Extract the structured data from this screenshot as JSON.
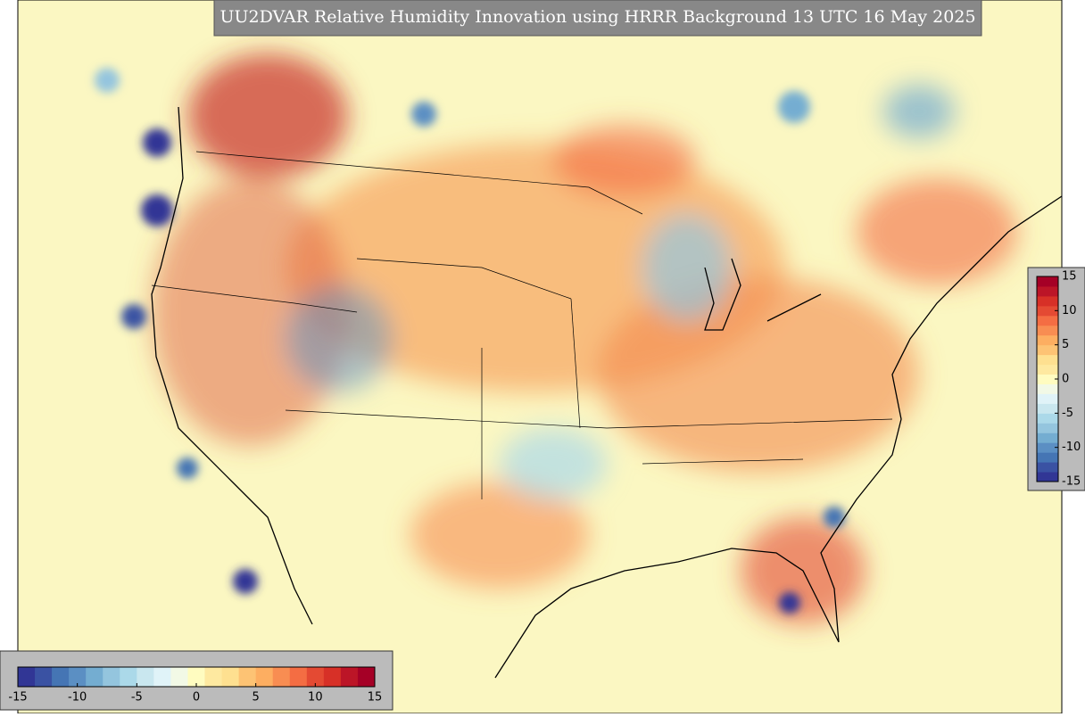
{
  "title": "UU2DVAR Relative Humidity Innovation using HRRR Background 13 UTC 16 May 2025",
  "colorbars": [
    {
      "orientation": "horizontal",
      "range": [
        -15,
        15
      ],
      "ticks": [
        -15,
        -10,
        -5,
        0,
        5,
        10,
        15
      ]
    },
    {
      "orientation": "vertical",
      "range": [
        -15,
        15
      ],
      "ticks": [
        -15,
        -10,
        -5,
        0,
        5,
        10,
        15
      ]
    }
  ],
  "colors": [
    "#313695",
    "#3a52a3",
    "#4575b4",
    "#5b8fc3",
    "#74add1",
    "#94c5de",
    "#abd9e9",
    "#c9e7ef",
    "#e0f3f8",
    "#f2f9e6",
    "#fffcc0",
    "#fee9a0",
    "#fee090",
    "#fdc374",
    "#fdae61",
    "#f88d52",
    "#f46d43",
    "#e44a33",
    "#d73027",
    "#bc1527",
    "#a50026"
  ]
}
